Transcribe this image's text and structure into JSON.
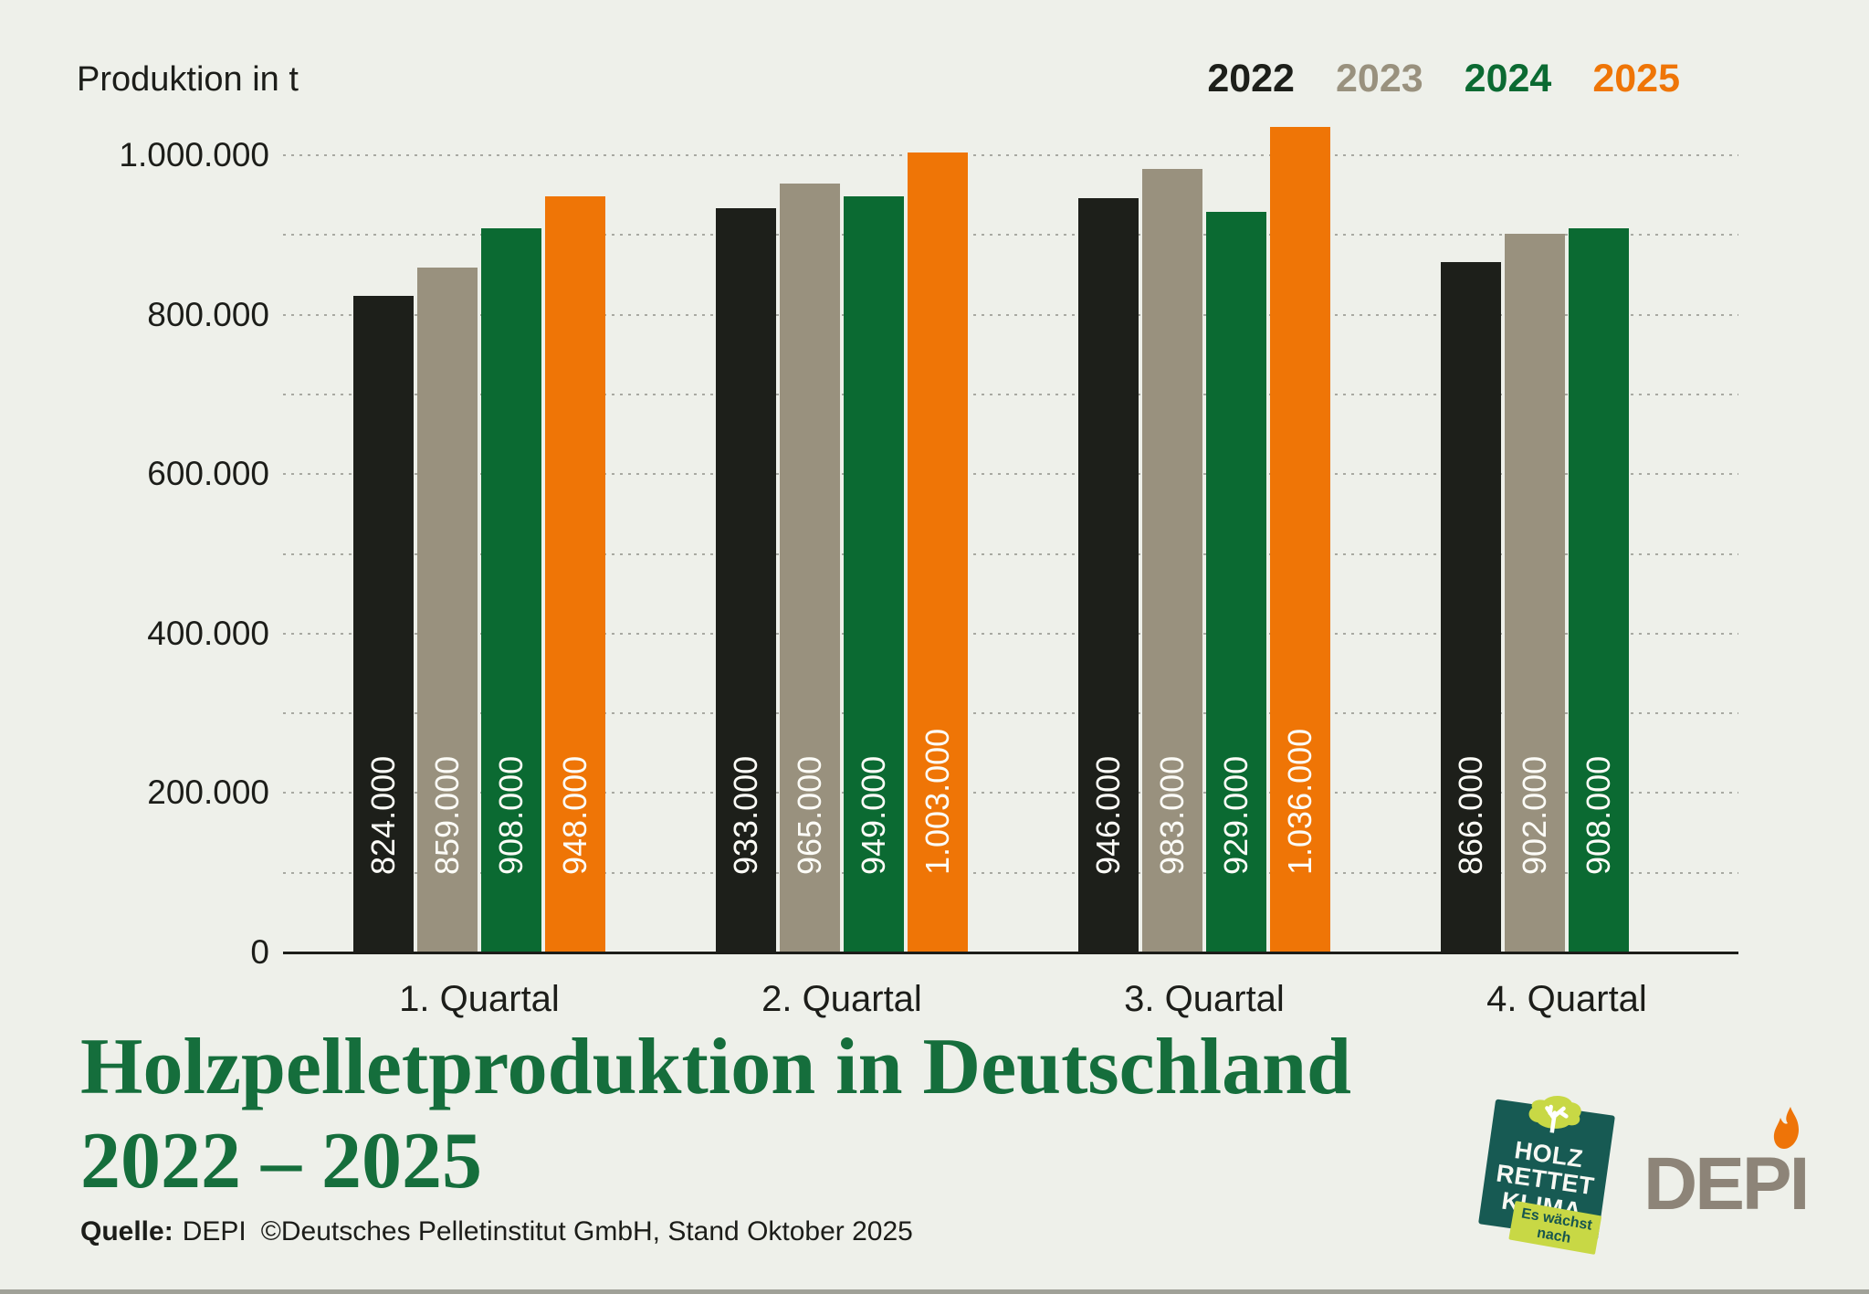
{
  "axis_title": "Produktion in t",
  "legend": [
    {
      "label": "2022",
      "color": "#1d1f1a"
    },
    {
      "label": "2023",
      "color": "#99917e"
    },
    {
      "label": "2024",
      "color": "#0b6a32"
    },
    {
      "label": "2025",
      "color": "#ef7506"
    }
  ],
  "chart_data": {
    "type": "bar",
    "title": "Holzpelletproduktion in Deutschland 2022 – 2025",
    "ylabel": "Produktion in t",
    "xlabel": "",
    "categories": [
      "1. Quartal",
      "2. Quartal",
      "3. Quartal",
      "4. Quartal"
    ],
    "series": [
      {
        "name": "2022",
        "color": "#1d1f1a",
        "values": [
          824000,
          933000,
          946000,
          866000
        ],
        "labels": [
          "824.000",
          "933.000",
          "946.000",
          "866.000"
        ]
      },
      {
        "name": "2023",
        "color": "#99917e",
        "values": [
          859000,
          965000,
          983000,
          902000
        ],
        "labels": [
          "859.000",
          "965.000",
          "983.000",
          "902.000"
        ]
      },
      {
        "name": "2024",
        "color": "#0b6a32",
        "values": [
          908000,
          949000,
          929000,
          908000
        ],
        "labels": [
          "908.000",
          "949.000",
          "929.000",
          "908.000"
        ]
      },
      {
        "name": "2025",
        "color": "#ef7506",
        "values": [
          948000,
          1003000,
          1036000,
          null
        ],
        "labels": [
          "948.000",
          "1.003.000",
          "1.036.000",
          null
        ]
      }
    ],
    "ylim": [
      0,
      1050000
    ],
    "grid_interval": 100000,
    "grid_values": [
      100000,
      200000,
      300000,
      400000,
      500000,
      600000,
      700000,
      800000,
      900000,
      1000000
    ],
    "yticks": [
      {
        "value": 0,
        "label": "0"
      },
      {
        "value": 200000,
        "label": "200.000"
      },
      {
        "value": 400000,
        "label": "400.000"
      },
      {
        "value": 600000,
        "label": "600.000"
      },
      {
        "value": 800000,
        "label": "800.000"
      },
      {
        "value": 1000000,
        "label": "1.000.000"
      }
    ],
    "legend_position": "top-right",
    "grid": "dotted-horizontal"
  },
  "title": {
    "line1": "Holzpelletproduktion in Deutschland",
    "line2": "2022 – 2025"
  },
  "source": {
    "prefix": "Quelle:",
    "name": "DEPI",
    "rest": "©Deutsches Pelletinstitut GmbH, Stand Oktober 2025"
  },
  "logos": {
    "badge": {
      "line1": "HOLZ",
      "line2": "RETTET",
      "line3": "KLIMA",
      "tag_line1": "Es wächst",
      "tag_line2": "nach",
      "bg_color": "#175a53",
      "accent_color": "#c8d845"
    },
    "depi": {
      "text": "DEPI",
      "flame_color": "#ee7408",
      "text_color": "#8d8478"
    }
  },
  "colors": {
    "background": "#eef0ea",
    "ink": "#1c1d19",
    "grid": "#a8a9a2",
    "title_green": "#156e3c",
    "value_label": "#fcfcf7"
  }
}
